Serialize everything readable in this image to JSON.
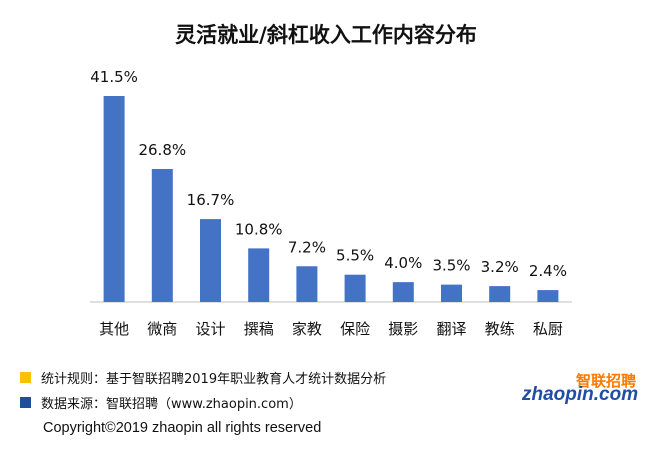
{
  "chart_data": {
    "type": "bar",
    "title": "灵活就业/斜杠收入工作内容分布",
    "categories": [
      "其他",
      "微商",
      "设计",
      "撰稿",
      "家教",
      "保险",
      "摄影",
      "翻译",
      "教练",
      "私厨"
    ],
    "values": [
      41.5,
      26.8,
      16.7,
      10.8,
      7.2,
      5.5,
      4.0,
      3.5,
      3.2,
      2.4
    ],
    "value_labels": [
      "41.5%",
      "26.8%",
      "16.7%",
      "10.8%",
      "7.2%",
      "5.5%",
      "4.0%",
      "3.5%",
      "3.2%",
      "2.4%"
    ],
    "ylim": [
      0,
      41.5
    ],
    "grid": false,
    "bar_color": "#4472c4"
  },
  "footer": {
    "rule_label": "统计规则：基于智联招聘2019年职业教育人才统计数据分析",
    "source_label": "数据来源：智联招聘（www.zhaopin.com）",
    "rule_color": "#ffc000",
    "source_color": "#1f4e9e",
    "copyright": "Copyright©2019 zhaopin all rights reserved"
  },
  "logo": {
    "cn": "智联招聘",
    "en": "zhaopin.com"
  }
}
